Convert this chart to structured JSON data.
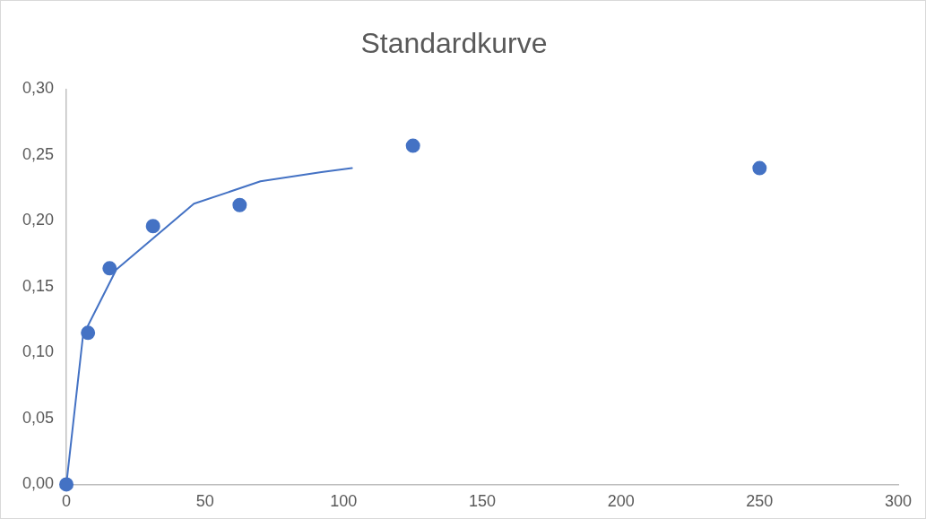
{
  "chart_data": {
    "type": "scatter",
    "title": "Standardkurve",
    "series": [
      {
        "type": "scatter",
        "color": "#4472c4",
        "x": [
          0,
          7.8,
          15.6,
          31.25,
          62.5,
          125,
          250
        ],
        "values": [
          0,
          0.115,
          0.164,
          0.196,
          0.212,
          0.257,
          0.24
        ],
        "marker": "circle"
      },
      {
        "type": "line",
        "color": "#4472c4",
        "x": [
          0,
          6,
          18,
          46,
          70,
          92,
          103
        ],
        "values": [
          0,
          0.113,
          0.163,
          0.213,
          0.23,
          0.237,
          0.24
        ],
        "marker": "none"
      }
    ],
    "xlim": [
      0,
      300
    ],
    "xticks": [
      0,
      50,
      100,
      150,
      200,
      250,
      300
    ],
    "ylim": [
      0,
      0.3
    ],
    "yticks": [
      {
        "value": 0,
        "label": "0,00"
      },
      {
        "value": 0.05,
        "label": "0,05"
      },
      {
        "value": 0.1,
        "label": "0,10"
      },
      {
        "value": 0.15,
        "label": "0,15"
      },
      {
        "value": 0.2,
        "label": "0,20"
      },
      {
        "value": 0.25,
        "label": "0,25"
      },
      {
        "value": 0.3,
        "label": "0,30"
      }
    ],
    "grid": false,
    "legend": false
  }
}
